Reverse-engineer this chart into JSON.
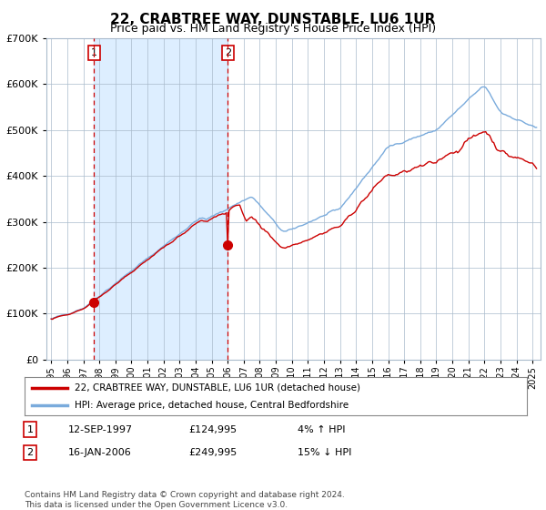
{
  "title": "22, CRABTREE WAY, DUNSTABLE, LU6 1UR",
  "subtitle": "Price paid vs. HM Land Registry's House Price Index (HPI)",
  "ylim": [
    0,
    700000
  ],
  "yticks": [
    0,
    100000,
    200000,
    300000,
    400000,
    500000,
    600000,
    700000
  ],
  "ytick_labels": [
    "£0",
    "£100K",
    "£200K",
    "£300K",
    "£400K",
    "£500K",
    "£600K",
    "£700K"
  ],
  "hpi_color": "#7aabdc",
  "price_color": "#cc0000",
  "vline_color": "#cc0000",
  "bg_shaded_color": "#ddeeff",
  "grid_color": "#aabbcc",
  "legend_line1": "22, CRABTREE WAY, DUNSTABLE, LU6 1UR (detached house)",
  "legend_line2": "HPI: Average price, detached house, Central Bedfordshire",
  "table_row1": [
    "1",
    "12-SEP-1997",
    "£124,995",
    "4% ↑ HPI"
  ],
  "table_row2": [
    "2",
    "16-JAN-2006",
    "£249,995",
    "15% ↓ HPI"
  ],
  "footnote": "Contains HM Land Registry data © Crown copyright and database right 2024.\nThis data is licensed under the Open Government Licence v3.0.",
  "title_fontsize": 11,
  "subtitle_fontsize": 9,
  "background_color": "#ffffff"
}
